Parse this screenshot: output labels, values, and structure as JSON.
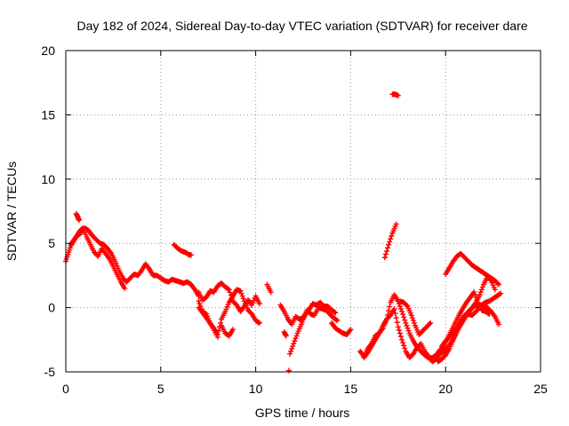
{
  "chart_data": {
    "type": "scatter",
    "title": "Day 182 of 2024, Sidereal Day-to-day VTEC variation (SDTVAR) for receiver dare",
    "xlabel": "GPS time / hours",
    "ylabel": "SDTVAR / TECUs",
    "xlim": [
      0,
      25
    ],
    "ylim": [
      -5,
      20
    ],
    "xticks": [
      0,
      5,
      10,
      15,
      20,
      25
    ],
    "yticks": [
      -5,
      0,
      5,
      10,
      15,
      20
    ],
    "grid": true,
    "marker": "plus",
    "color": "#ff0000",
    "series": [
      {
        "name": "SDTVAR",
        "segments": [
          {
            "x": [
              0.0,
              0.15,
              0.3,
              0.45,
              0.6,
              0.8,
              1.0,
              1.2,
              1.4,
              1.6,
              1.8,
              2.0,
              2.2,
              2.4,
              2.6,
              2.8,
              3.0,
              3.2,
              3.4,
              3.6,
              3.8,
              4.0,
              4.2,
              4.4,
              4.6,
              4.8,
              5.0,
              5.2,
              5.4,
              5.6,
              5.8,
              6.0,
              6.2,
              6.4,
              6.6,
              6.8,
              7.0
            ],
            "y": [
              3.6,
              4.3,
              5.0,
              5.3,
              5.6,
              5.8,
              6.2,
              6.0,
              5.6,
              5.3,
              5.0,
              4.9,
              4.6,
              4.2,
              3.6,
              2.9,
              2.3,
              2.0,
              2.3,
              2.6,
              2.5,
              2.9,
              3.4,
              3.0,
              2.5,
              2.5,
              2.3,
              2.1,
              2.0,
              2.2,
              2.1,
              2.0,
              1.9,
              2.0,
              1.8,
              1.4,
              0.9
            ]
          },
          {
            "x": [
              0.3,
              0.5,
              0.7,
              0.9,
              1.1,
              1.3,
              1.5,
              1.7,
              1.9,
              2.1,
              2.3,
              2.5,
              2.7,
              2.9,
              3.1
            ],
            "y": [
              4.9,
              5.4,
              5.9,
              6.2,
              5.5,
              4.9,
              4.3,
              4.0,
              4.6,
              4.2,
              3.8,
              3.2,
              2.6,
              2.0,
              1.5
            ]
          },
          {
            "x": [
              0.55,
              0.62,
              0.7
            ],
            "y": [
              7.3,
              7.1,
              6.8
            ]
          },
          {
            "x": [
              5.7,
              5.9,
              6.1,
              6.3,
              6.5,
              6.6
            ],
            "y": [
              4.9,
              4.6,
              4.4,
              4.3,
              4.1,
              4.1
            ]
          },
          {
            "x": [
              7.0,
              7.2,
              7.4,
              7.6,
              7.8,
              8.0,
              8.2,
              8.4,
              8.6,
              8.8,
              9.0,
              9.2,
              9.4,
              9.6,
              9.8,
              10.0,
              10.2
            ],
            "y": [
              1.2,
              0.6,
              0.8,
              1.3,
              1.2,
              1.7,
              1.9,
              1.6,
              1.4,
              0.5,
              0.2,
              -0.3,
              0.1,
              0.6,
              0.2,
              0.9,
              0.3
            ]
          },
          {
            "x": [
              7.0,
              7.2,
              7.4,
              7.6,
              7.8,
              8.0,
              8.2,
              8.4,
              8.6,
              8.8,
              9.0,
              9.2,
              9.4,
              9.6,
              9.8,
              10.0,
              10.2
            ],
            "y": [
              0.5,
              -0.3,
              -0.5,
              -1.2,
              -1.6,
              -2.1,
              -0.9,
              -0.3,
              0.4,
              0.9,
              1.4,
              1.3,
              0.5,
              -0.2,
              -0.5,
              -1.0,
              -1.2
            ]
          },
          {
            "x": [
              7.0,
              7.25,
              7.5,
              7.75,
              8.0
            ],
            "y": [
              0.0,
              -0.5,
              -1.0,
              -1.6,
              -2.3
            ]
          },
          {
            "x": [
              8.2,
              8.4,
              8.6,
              8.8
            ],
            "y": [
              -1.4,
              -2.0,
              -2.2,
              -1.7
            ]
          },
          {
            "x": [
              10.6,
              10.8
            ],
            "y": [
              1.8,
              1.2
            ]
          },
          {
            "x": [
              11.3,
              11.5,
              11.7,
              11.9,
              12.1,
              12.3,
              12.5,
              12.7,
              12.9,
              13.1,
              13.3,
              13.5,
              13.7,
              13.9,
              14.1,
              14.3
            ],
            "y": [
              0.2,
              -0.3,
              -0.9,
              -1.3,
              -0.7,
              -0.9,
              -0.8,
              -0.2,
              -0.5,
              -0.6,
              0.0,
              -0.1,
              -0.2,
              -0.5,
              -0.8,
              -1.0
            ]
          },
          {
            "x": [
              11.8,
              12.0,
              12.2,
              12.4,
              12.6,
              12.8,
              13.0,
              13.2,
              13.4,
              13.6,
              13.8,
              14.0,
              14.2
            ],
            "y": [
              -3.6,
              -2.8,
              -2.0,
              -1.3,
              -0.6,
              -0.2,
              0.3,
              0.2,
              0.4,
              0.1,
              0.1,
              -0.2,
              -0.4
            ]
          },
          {
            "x": [
              11.5,
              11.6
            ],
            "y": [
              -1.9,
              -2.2
            ]
          },
          {
            "x": [
              11.75
            ],
            "y": [
              -4.9
            ]
          },
          {
            "x": [
              14.0,
              14.2,
              14.4,
              14.6,
              14.8,
              15.0
            ],
            "y": [
              -1.2,
              -1.6,
              -1.8,
              -2.0,
              -2.1,
              -1.7
            ]
          },
          {
            "x": [
              15.5,
              15.7,
              15.9,
              16.1,
              16.3,
              16.5,
              16.7,
              16.9,
              17.1,
              17.3,
              17.5,
              17.7,
              17.9,
              18.1,
              18.3,
              18.5,
              18.7,
              18.9,
              19.1,
              19.3,
              19.5,
              19.7,
              19.9,
              20.1,
              20.3,
              20.5,
              20.7,
              20.9,
              21.1,
              21.3,
              21.5,
              21.7,
              21.9,
              22.1,
              22.3,
              22.5,
              22.7,
              22.9
            ],
            "y": [
              -3.4,
              -3.8,
              -3.2,
              -2.8,
              -2.2,
              -2.0,
              -1.6,
              -0.9,
              -0.6,
              -0.1,
              -1.5,
              -2.5,
              -3.4,
              -3.9,
              -3.6,
              -3.1,
              -2.8,
              -3.4,
              -3.8,
              -4.2,
              -4.0,
              -3.6,
              -3.4,
              -3.1,
              -2.7,
              -2.2,
              -1.6,
              -1.1,
              -0.6,
              -0.2,
              0.1,
              0.2,
              0.2,
              0.4,
              0.5,
              0.7,
              0.9,
              1.1
            ]
          },
          {
            "x": [
              15.7,
              15.9,
              16.1,
              16.3,
              16.5,
              16.7,
              16.9,
              17.1,
              17.3,
              17.5,
              17.7,
              17.9,
              18.1,
              18.3,
              18.5,
              18.7,
              18.9,
              19.1,
              19.3,
              19.5,
              19.7,
              19.9,
              20.1,
              20.3,
              20.5,
              20.7,
              20.9,
              21.1,
              21.3,
              21.5,
              21.7,
              21.9,
              22.1,
              22.3
            ],
            "y": [
              -3.9,
              -3.5,
              -3.0,
              -2.5,
              -2.0,
              -1.4,
              -0.9,
              0.4,
              1.0,
              0.5,
              -0.3,
              -1.2,
              -2.0,
              -2.6,
              -3.1,
              -3.4,
              -3.7,
              -3.9,
              -3.9,
              -3.7,
              -3.3,
              -3.0,
              -2.4,
              -1.8,
              -1.2,
              -0.6,
              -0.1,
              0.4,
              0.8,
              1.2,
              0.4,
              -0.2,
              -0.3,
              -0.5
            ]
          },
          {
            "x": [
              16.8,
              17.0,
              17.2,
              17.4
            ],
            "y": [
              3.9,
              4.9,
              5.8,
              6.5
            ]
          },
          {
            "x": [
              17.2,
              17.35,
              17.5
            ],
            "y": [
              16.6,
              16.6,
              16.5
            ]
          },
          {
            "x": [
              17.6,
              17.8,
              18.0,
              18.2,
              18.4,
              18.6,
              18.8,
              19.0,
              19.2
            ],
            "y": [
              0.5,
              0.4,
              0.1,
              -0.6,
              -1.4,
              -2.1,
              -1.8,
              -1.5,
              -1.2
            ]
          },
          {
            "x": [
              20.0,
              20.2,
              20.4,
              20.6,
              20.8,
              21.0,
              21.2,
              21.4,
              21.6,
              21.8,
              22.0,
              22.2,
              22.4,
              22.6,
              22.8
            ],
            "y": [
              2.6,
              3.1,
              3.6,
              4.0,
              4.2,
              3.9,
              3.6,
              3.3,
              3.1,
              2.9,
              2.7,
              2.5,
              2.3,
              2.1,
              1.8
            ]
          },
          {
            "x": [
              19.6,
              19.8,
              20.0,
              20.2,
              20.4,
              20.6,
              20.8,
              21.0,
              21.2,
              21.4,
              21.6,
              21.8,
              22.0,
              22.2,
              22.4,
              22.6,
              22.8
            ],
            "y": [
              -4.2,
              -4.0,
              -3.7,
              -3.2,
              -2.5,
              -1.7,
              -1.0,
              -0.6,
              -0.5,
              -0.6,
              -0.3,
              0.0,
              0.1,
              0.0,
              -0.3,
              -0.7,
              -1.3
            ]
          },
          {
            "x": [
              19.8,
              20.0,
              20.2,
              20.4,
              20.6,
              20.8,
              21.0,
              21.2,
              21.4,
              21.6,
              21.8,
              22.0,
              22.2,
              22.4,
              22.6
            ],
            "y": [
              -3.0,
              -2.6,
              -2.3,
              -1.9,
              -1.5,
              -1.1,
              -0.7,
              -0.3,
              0.0,
              0.4,
              1.0,
              1.8,
              2.4,
              2.1,
              1.4
            ]
          }
        ]
      }
    ]
  }
}
